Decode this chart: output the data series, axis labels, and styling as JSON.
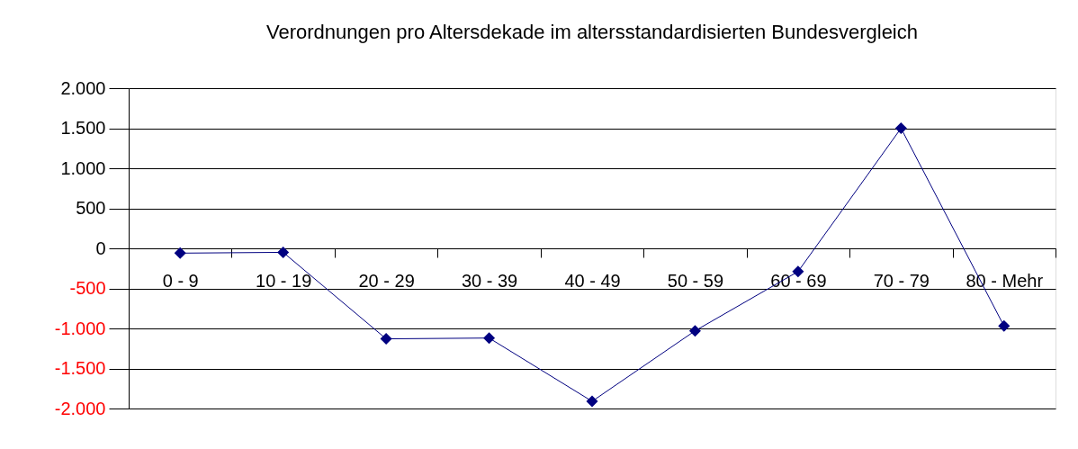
{
  "chart_data": {
    "type": "line",
    "title": "Verordnungen pro Altersdekade im altersstandardisierten Bundesvergleich",
    "categories": [
      "0 - 9",
      "10 - 19",
      "20 - 29",
      "30 - 39",
      "40 - 49",
      "50 - 59",
      "60 - 69",
      "70 - 79",
      "80 - Mehr"
    ],
    "series": [
      {
        "color": "#000080",
        "values": [
          -60,
          -50,
          -1130,
          -1120,
          -1910,
          -1030,
          -290,
          1500,
          -970
        ]
      }
    ],
    "ylim": [
      -2000,
      2000
    ],
    "yticks": [
      {
        "value": -2000,
        "label": "-2.000"
      },
      {
        "value": -1500,
        "label": "-1.500"
      },
      {
        "value": -1000,
        "label": "-1.000"
      },
      {
        "value": -500,
        "label": "-500"
      },
      0,
      500,
      {
        "value": 1000,
        "label": "1.000"
      },
      {
        "value": 1500,
        "label": "1.500"
      },
      {
        "value": 2000,
        "label": "2.000"
      }
    ],
    "grid": "y",
    "marker": "diamond",
    "line_style": "solid"
  }
}
